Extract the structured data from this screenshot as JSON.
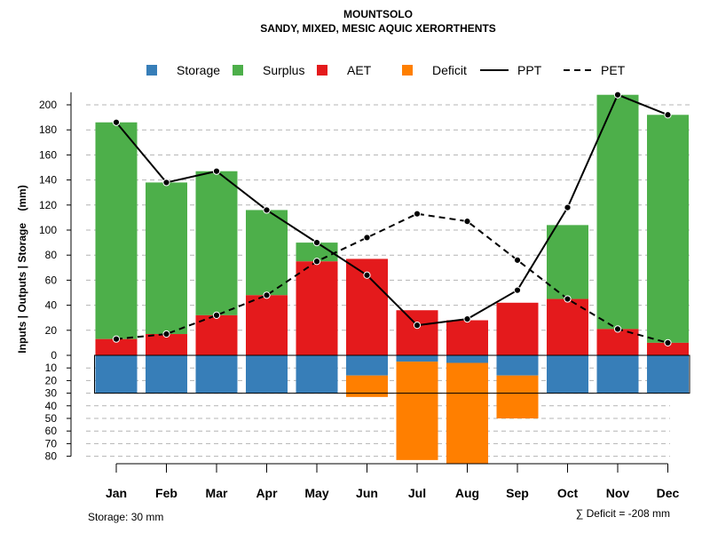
{
  "chart_data": {
    "type": "bar",
    "title": "MOUNTSOLO",
    "subtitle": "SANDY, MIXED, MESIC AQUIC XERORTHENTS",
    "ylabel": "Inputs | Outputs | Storage    (mm)",
    "categories": [
      "Jan",
      "Feb",
      "Mar",
      "Apr",
      "May",
      "Jun",
      "Jul",
      "Aug",
      "Sep",
      "Oct",
      "Nov",
      "Dec"
    ],
    "ylim_top": [
      0,
      210
    ],
    "ylim_bottom": [
      0,
      80
    ],
    "yticks_top": [
      "0",
      "20",
      "40",
      "60",
      "80",
      "100",
      "120",
      "140",
      "160",
      "180",
      "200"
    ],
    "yticks_bottom": [
      "10",
      "20",
      "30",
      "40",
      "50",
      "60",
      "70",
      "80"
    ],
    "legend": [
      {
        "label": "Storage",
        "kind": "box",
        "color": "#377EB8"
      },
      {
        "label": "Surplus",
        "kind": "box",
        "color": "#4DAF4A"
      },
      {
        "label": "AET",
        "kind": "box",
        "color": "#E41A1C"
      },
      {
        "label": "Deficit",
        "kind": "box",
        "color": "#FF7F00"
      },
      {
        "label": "PPT",
        "kind": "solid"
      },
      {
        "label": "PET",
        "kind": "dashed"
      }
    ],
    "series": [
      {
        "name": "AET",
        "color": "#E41A1C",
        "values": [
          13,
          17,
          32,
          48,
          75,
          77,
          36,
          28,
          42,
          45,
          21,
          10
        ]
      },
      {
        "name": "Surplus",
        "color": "#4DAF4A",
        "values": [
          173,
          121,
          115,
          68,
          15,
          0,
          0,
          0,
          0,
          59,
          187,
          182
        ]
      },
      {
        "name": "Storage",
        "color": "#377EB8",
        "values": [
          30,
          30,
          30,
          30,
          30,
          16,
          5,
          6,
          16,
          30,
          30,
          30
        ]
      },
      {
        "name": "Deficit",
        "color": "#FF7F00",
        "values": [
          0,
          0,
          0,
          0,
          0,
          17,
          78,
          80,
          34,
          0,
          0,
          0
        ]
      },
      {
        "name": "PPT",
        "style": "solid",
        "values": [
          186,
          138,
          147,
          116,
          90,
          64,
          24,
          29,
          52,
          118,
          208,
          192
        ]
      },
      {
        "name": "PET",
        "style": "dashed",
        "values": [
          13,
          17,
          32,
          48,
          75,
          94,
          113,
          107,
          76,
          45,
          21,
          10
        ]
      }
    ],
    "storage_capacity": 30
  },
  "footer": {
    "storage_note": "Storage: 30 mm",
    "deficit_note": "∑ Deficit = -208 mm"
  }
}
